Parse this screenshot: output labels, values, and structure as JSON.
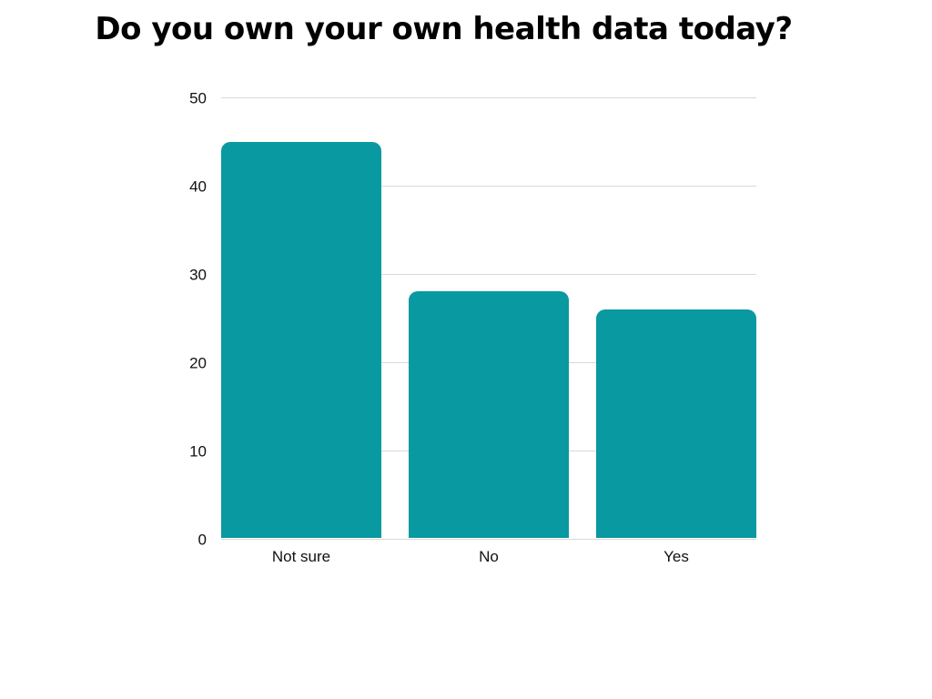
{
  "chart_data": {
    "type": "bar",
    "title": "Do you own your own health data today?",
    "categories": [
      "Not sure",
      "No",
      "Yes"
    ],
    "values": [
      45,
      28,
      26
    ],
    "xlabel": "",
    "ylabel": "",
    "ylim": [
      0,
      50
    ],
    "yticks": [
      0,
      10,
      20,
      30,
      40,
      50
    ],
    "grid": true,
    "legend_position": "none",
    "colors": {
      "bar": "#0999A0",
      "gridline": "#d9d9d9",
      "tick_label": "#111111",
      "title": "#000000",
      "background": "#ffffff"
    }
  }
}
